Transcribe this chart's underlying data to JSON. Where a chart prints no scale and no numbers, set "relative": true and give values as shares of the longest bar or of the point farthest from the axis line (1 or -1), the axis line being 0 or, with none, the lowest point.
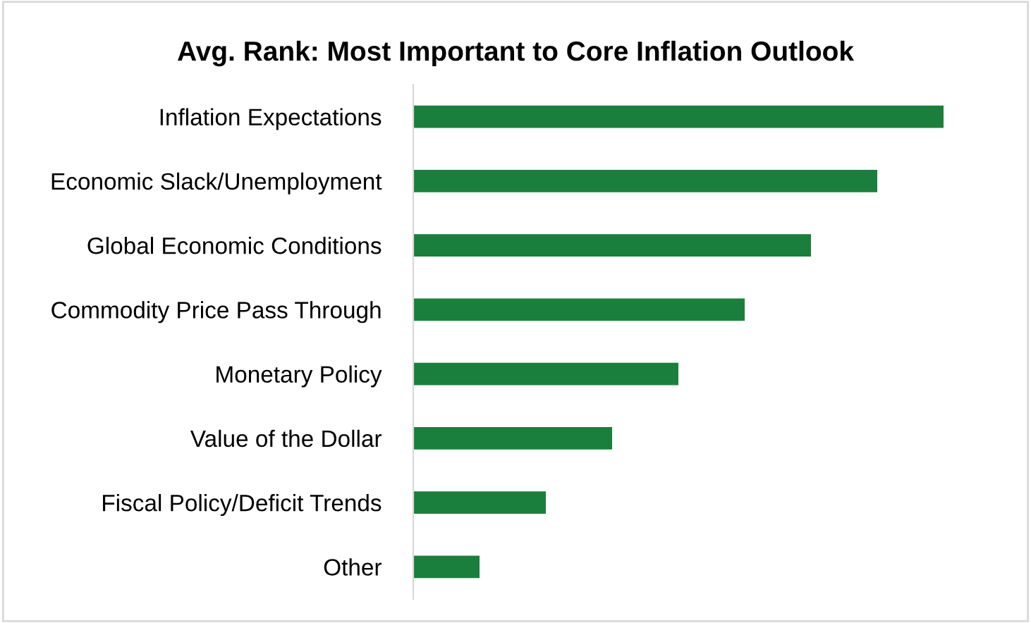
{
  "chart_data": {
    "type": "bar",
    "orientation": "horizontal",
    "relative": true,
    "title": "Avg. Rank: Most Important to Core Inflation Outlook",
    "categories": [
      "Inflation Expectations",
      "Economic Slack/Unemployment",
      "Global Economic Conditions",
      "Commodity Price Pass Through",
      "Monetary Policy",
      "Value of the Dollar",
      "Fiscal Policy/Deficit Trends",
      "Other"
    ],
    "values": [
      1,
      0.875,
      0.75,
      0.625,
      0.5,
      0.375,
      0.25,
      0.125
    ],
    "color": "#1a7f3c",
    "grid": false,
    "legend": false
  }
}
